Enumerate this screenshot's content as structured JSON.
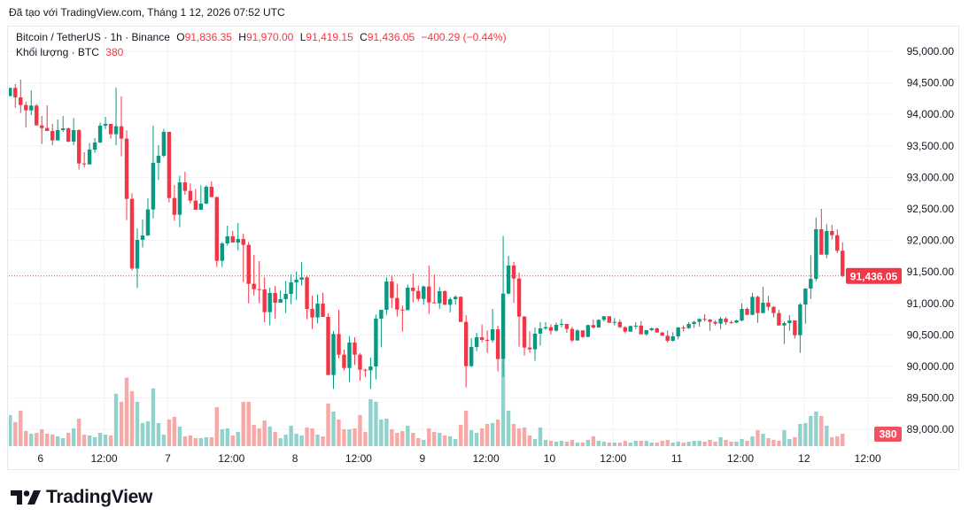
{
  "caption": "Đã tạo với TradingView.com, Tháng 1 12, 2026 07:52 UTC",
  "legend": {
    "symbol": "Bitcoin / TetherUS · 1h · Binance",
    "o_label": "O",
    "o": "91,836.35",
    "h_label": "H",
    "h": "91,970.00",
    "l_label": "L",
    "l": "91,419.15",
    "c_label": "C",
    "c": "91,436.05",
    "change": "−400.29 (−0.44%)",
    "volume_label": "Khối lượng · BTC",
    "volume": "380"
  },
  "logo": {
    "text": "TradingView"
  },
  "colors": {
    "up": "#089981",
    "down": "#F23645",
    "volume_up": "#92D2CC",
    "volume_down": "#F7A9A7",
    "grid": "#F0F3FA"
  },
  "chart_data": {
    "type": "candlestick",
    "symbol": "Bitcoin / TetherUS",
    "interval": "1h",
    "first_candle_time": "2026-01-05 18:00",
    "ylim": [
      88800,
      95300
    ],
    "y_ticks": [
      95000,
      94500,
      94000,
      93500,
      93000,
      92500,
      92000,
      91500,
      91000,
      90500,
      90000,
      89500,
      89000
    ],
    "y_tick_labels": [
      "95,000.00",
      "94,500.00",
      "94,000.00",
      "93,500.00",
      "93,000.00",
      "92,500.00",
      "92,000.00",
      "91,500.00",
      "91,000.00",
      "90,500.00",
      "90,000.00",
      "89,500.00",
      "89,000.00"
    ],
    "x_tick_labels": [
      "6",
      "12:00",
      "7",
      "12:00",
      "8",
      "12:00",
      "9",
      "12:00",
      "10",
      "12:00",
      "11",
      "12:00",
      "12",
      "12:00"
    ],
    "last_price": 91436.05,
    "last_price_label": "91,436.05",
    "last_volume": 380,
    "last_volume_label": "380",
    "grid": true,
    "columns": [
      "open",
      "high",
      "low",
      "close",
      "volume"
    ],
    "candles": [
      [
        94289,
        94420,
        94289,
        94420,
        950
      ],
      [
        94420,
        94481,
        94106,
        94270,
        733
      ],
      [
        94270,
        94551,
        94022,
        94148,
        1086
      ],
      [
        94148,
        94200,
        93788,
        94064,
        462
      ],
      [
        94064,
        94382,
        93989,
        94139,
        380
      ],
      [
        94139,
        94167,
        93825,
        93825,
        407
      ],
      [
        93825,
        93975,
        93530,
        93783,
        516
      ],
      [
        93783,
        94144,
        93736,
        93736,
        380
      ],
      [
        93736,
        93849,
        93512,
        93587,
        353
      ],
      [
        93587,
        93919,
        93587,
        93750,
        299
      ],
      [
        93750,
        93975,
        93717,
        93778,
        244
      ],
      [
        93778,
        93792,
        93558,
        93568,
        407
      ],
      [
        93568,
        93938,
        93512,
        93750,
        543
      ],
      [
        93750,
        93764,
        93123,
        93221,
        842
      ],
      [
        93221,
        93399,
        93156,
        93207,
        353
      ],
      [
        93207,
        93544,
        93202,
        93441,
        326
      ],
      [
        93441,
        93624,
        93390,
        93554,
        271
      ],
      [
        93554,
        93872,
        93544,
        93821,
        407
      ],
      [
        93821,
        93961,
        93764,
        93849,
        353
      ],
      [
        93849,
        93849,
        93615,
        93685,
        326
      ],
      [
        93685,
        94425,
        93512,
        93811,
        1602
      ],
      [
        93811,
        94284,
        93334,
        93615,
        1358
      ],
      [
        93615,
        93746,
        92322,
        92659,
        2100
      ],
      [
        92659,
        92748,
        91522,
        91554,
        1683
      ],
      [
        91554,
        92191,
        91245,
        92009,
        1358
      ],
      [
        92009,
        92332,
        91887,
        92079,
        706
      ],
      [
        92079,
        92669,
        92070,
        92491,
        760
      ],
      [
        92491,
        93821,
        92351,
        93231,
        1765
      ],
      [
        93231,
        93512,
        92959,
        93343,
        706
      ],
      [
        93343,
        93769,
        93319,
        93722,
        353
      ],
      [
        93722,
        93722,
        92603,
        92673,
        815
      ],
      [
        92673,
        92879,
        92313,
        92406,
        896
      ],
      [
        92406,
        93029,
        92210,
        92921,
        597
      ],
      [
        92921,
        93090,
        92725,
        92786,
        299
      ],
      [
        92786,
        92903,
        92584,
        92631,
        326
      ],
      [
        92631,
        92818,
        92486,
        92486,
        244
      ],
      [
        92486,
        92875,
        92486,
        92584,
        244
      ],
      [
        92584,
        92875,
        92575,
        92851,
        271
      ],
      [
        92851,
        92935,
        92687,
        92687,
        271
      ],
      [
        92687,
        92697,
        91578,
        91676,
        1195
      ],
      [
        91676,
        91975,
        91578,
        91952,
        516
      ],
      [
        91952,
        92233,
        91915,
        92064,
        543
      ],
      [
        92064,
        92149,
        91966,
        91966,
        326
      ],
      [
        91966,
        92275,
        91844,
        92022,
        434
      ],
      [
        92022,
        92107,
        91339,
        91929,
        1358
      ],
      [
        91929,
        91975,
        91002,
        91311,
        1358
      ],
      [
        91311,
        91769,
        91123,
        91226,
        652
      ],
      [
        91226,
        91671,
        91002,
        91222,
        543
      ],
      [
        91222,
        91414,
        90702,
        90861,
        787
      ],
      [
        90861,
        91250,
        90651,
        91166,
        597
      ],
      [
        91166,
        91278,
        90758,
        91011,
        434
      ],
      [
        91011,
        91203,
        91011,
        91067,
        244
      ],
      [
        91067,
        91358,
        90847,
        91152,
        353
      ],
      [
        91152,
        91461,
        90988,
        91334,
        624
      ],
      [
        91334,
        91503,
        91058,
        91376,
        380
      ],
      [
        91376,
        91657,
        91283,
        91414,
        326
      ],
      [
        91414,
        91437,
        90749,
        90913,
        570
      ],
      [
        90913,
        91124,
        90594,
        90777,
        543
      ],
      [
        90777,
        91142,
        90683,
        90997,
        353
      ],
      [
        90997,
        91166,
        90786,
        90786,
        299
      ],
      [
        90786,
        90843,
        89864,
        89864,
        1303
      ],
      [
        89864,
        90562,
        89644,
        90515,
        1059
      ],
      [
        90515,
        90899,
        90131,
        90187,
        815
      ],
      [
        90187,
        90267,
        89934,
        89976,
        516
      ],
      [
        89976,
        90482,
        89752,
        90379,
        516
      ],
      [
        90379,
        90463,
        90023,
        90187,
        543
      ],
      [
        90187,
        90211,
        89770,
        89948,
        950
      ],
      [
        89948,
        89963,
        89836,
        89939,
        434
      ],
      [
        89939,
        90140,
        89644,
        90000,
        1439
      ],
      [
        90000,
        90824,
        89794,
        90758,
        1358
      ],
      [
        90758,
        90899,
        90304,
        90899,
        815
      ],
      [
        90899,
        91414,
        90819,
        91348,
        842
      ],
      [
        91348,
        91447,
        90927,
        91086,
        516
      ],
      [
        91086,
        91311,
        90791,
        90903,
        407
      ],
      [
        90903,
        90969,
        90552,
        90895,
        462
      ],
      [
        90895,
        91297,
        90889,
        91250,
        624
      ],
      [
        91250,
        91475,
        91016,
        91198,
        407
      ],
      [
        91198,
        91283,
        91035,
        91072,
        244
      ],
      [
        91072,
        91283,
        90978,
        91269,
        190
      ],
      [
        91269,
        91601,
        90833,
        91016,
        543
      ],
      [
        91016,
        91461,
        91002,
        91002,
        434
      ],
      [
        91002,
        91259,
        90913,
        91194,
        407
      ],
      [
        91194,
        91208,
        90978,
        90978,
        326
      ],
      [
        90978,
        91100,
        90857,
        91067,
        299
      ],
      [
        91067,
        91128,
        90978,
        91105,
        217
      ],
      [
        91105,
        91110,
        90707,
        90707,
        652
      ],
      [
        90707,
        90815,
        89668,
        90005,
        1086
      ],
      [
        90005,
        90449,
        89991,
        90309,
        489
      ],
      [
        90309,
        90534,
        90243,
        90463,
        407
      ],
      [
        90463,
        90665,
        90384,
        90421,
        543
      ],
      [
        90421,
        90571,
        90215,
        90416,
        679
      ],
      [
        90416,
        90913,
        90379,
        90590,
        706
      ],
      [
        90590,
        90646,
        89920,
        90117,
        815
      ],
      [
        90117,
        92069,
        89836,
        91156,
        2650
      ],
      [
        91156,
        91756,
        91142,
        91601,
        1086
      ],
      [
        91601,
        91657,
        91008,
        91395,
        679
      ],
      [
        91395,
        91489,
        90314,
        90791,
        543
      ],
      [
        90791,
        90801,
        90173,
        90300,
        570
      ],
      [
        90300,
        90557,
        90215,
        90272,
        326
      ],
      [
        90272,
        90618,
        90089,
        90520,
        217
      ],
      [
        90520,
        90702,
        90332,
        90604,
        570
      ],
      [
        90604,
        90702,
        90581,
        90623,
        190
      ],
      [
        90623,
        90669,
        90506,
        90567,
        163
      ],
      [
        90567,
        90697,
        90553,
        90660,
        136
      ],
      [
        90660,
        90754,
        90620,
        90674,
        163
      ],
      [
        90674,
        90674,
        90534,
        90595,
        136
      ],
      [
        90595,
        90632,
        90384,
        90412,
        190
      ],
      [
        90412,
        90590,
        90412,
        90571,
        109
      ],
      [
        90571,
        90576,
        90453,
        90468,
        109
      ],
      [
        90468,
        90665,
        90468,
        90656,
        190
      ],
      [
        90656,
        90744,
        90600,
        90618,
        299
      ],
      [
        90618,
        90749,
        90613,
        90740,
        163
      ],
      [
        90740,
        90800,
        90712,
        90796,
        136
      ],
      [
        90796,
        90800,
        90693,
        90693,
        109
      ],
      [
        90693,
        90768,
        90651,
        90707,
        109
      ],
      [
        90707,
        90744,
        90608,
        90623,
        109
      ],
      [
        90623,
        90637,
        90524,
        90552,
        163
      ],
      [
        90552,
        90650,
        90552,
        90641,
        109
      ],
      [
        90636,
        90702,
        90594,
        90648,
        163
      ],
      [
        90648,
        90721,
        90510,
        90510,
        163
      ],
      [
        90510,
        90580,
        90487,
        90576,
        163
      ],
      [
        90576,
        90620,
        90560,
        90604,
        109
      ],
      [
        90604,
        90618,
        90538,
        90538,
        109
      ],
      [
        90538,
        90548,
        90487,
        90487,
        163
      ],
      [
        90487,
        90571,
        90379,
        90407,
        190
      ],
      [
        90407,
        90543,
        90398,
        90477,
        109
      ],
      [
        90477,
        90627,
        90431,
        90618,
        136
      ],
      [
        90618,
        90651,
        90552,
        90608,
        109
      ],
      [
        90608,
        90702,
        90594,
        90674,
        136
      ],
      [
        90674,
        90721,
        90608,
        90707,
        163
      ],
      [
        90707,
        90758,
        90632,
        90754,
        163
      ],
      [
        90754,
        90828,
        90712,
        90744,
        136
      ],
      [
        90744,
        90754,
        90566,
        90707,
        190
      ],
      [
        90707,
        90730,
        90651,
        90679,
        136
      ],
      [
        90679,
        90782,
        90594,
        90758,
        271
      ],
      [
        90758,
        90782,
        90660,
        90702,
        190
      ],
      [
        90702,
        90730,
        90680,
        90695,
        136
      ],
      [
        90695,
        90740,
        90688,
        90730,
        136
      ],
      [
        90730,
        91002,
        90712,
        90913,
        217
      ],
      [
        90913,
        90936,
        90814,
        90819,
        163
      ],
      [
        90819,
        91165,
        90814,
        91105,
        299
      ],
      [
        91105,
        91123,
        90692,
        90847,
        489
      ],
      [
        90847,
        91264,
        90847,
        91011,
        380
      ],
      [
        91011,
        91118,
        90889,
        90945,
        244
      ],
      [
        90945,
        90955,
        90777,
        90847,
        190
      ],
      [
        90847,
        90899,
        90650,
        90650,
        163
      ],
      [
        90650,
        90716,
        90355,
        90688,
        489
      ],
      [
        90688,
        90814,
        90566,
        90730,
        217
      ],
      [
        90730,
        90730,
        90440,
        90496,
        271
      ],
      [
        90496,
        91006,
        90215,
        90983,
        679
      ],
      [
        90983,
        91240,
        90679,
        91236,
        706
      ],
      [
        91236,
        91765,
        91072,
        91390,
        923
      ],
      [
        91390,
        92364,
        91353,
        92177,
        1059
      ],
      [
        92177,
        92500,
        91774,
        91774,
        923
      ],
      [
        91774,
        92256,
        91718,
        92149,
        624
      ],
      [
        92149,
        92247,
        92013,
        92083,
        271
      ],
      [
        92083,
        92177,
        91798,
        91836,
        299
      ],
      [
        91836.35,
        91970,
        91419.15,
        91436.05,
        380
      ]
    ]
  }
}
